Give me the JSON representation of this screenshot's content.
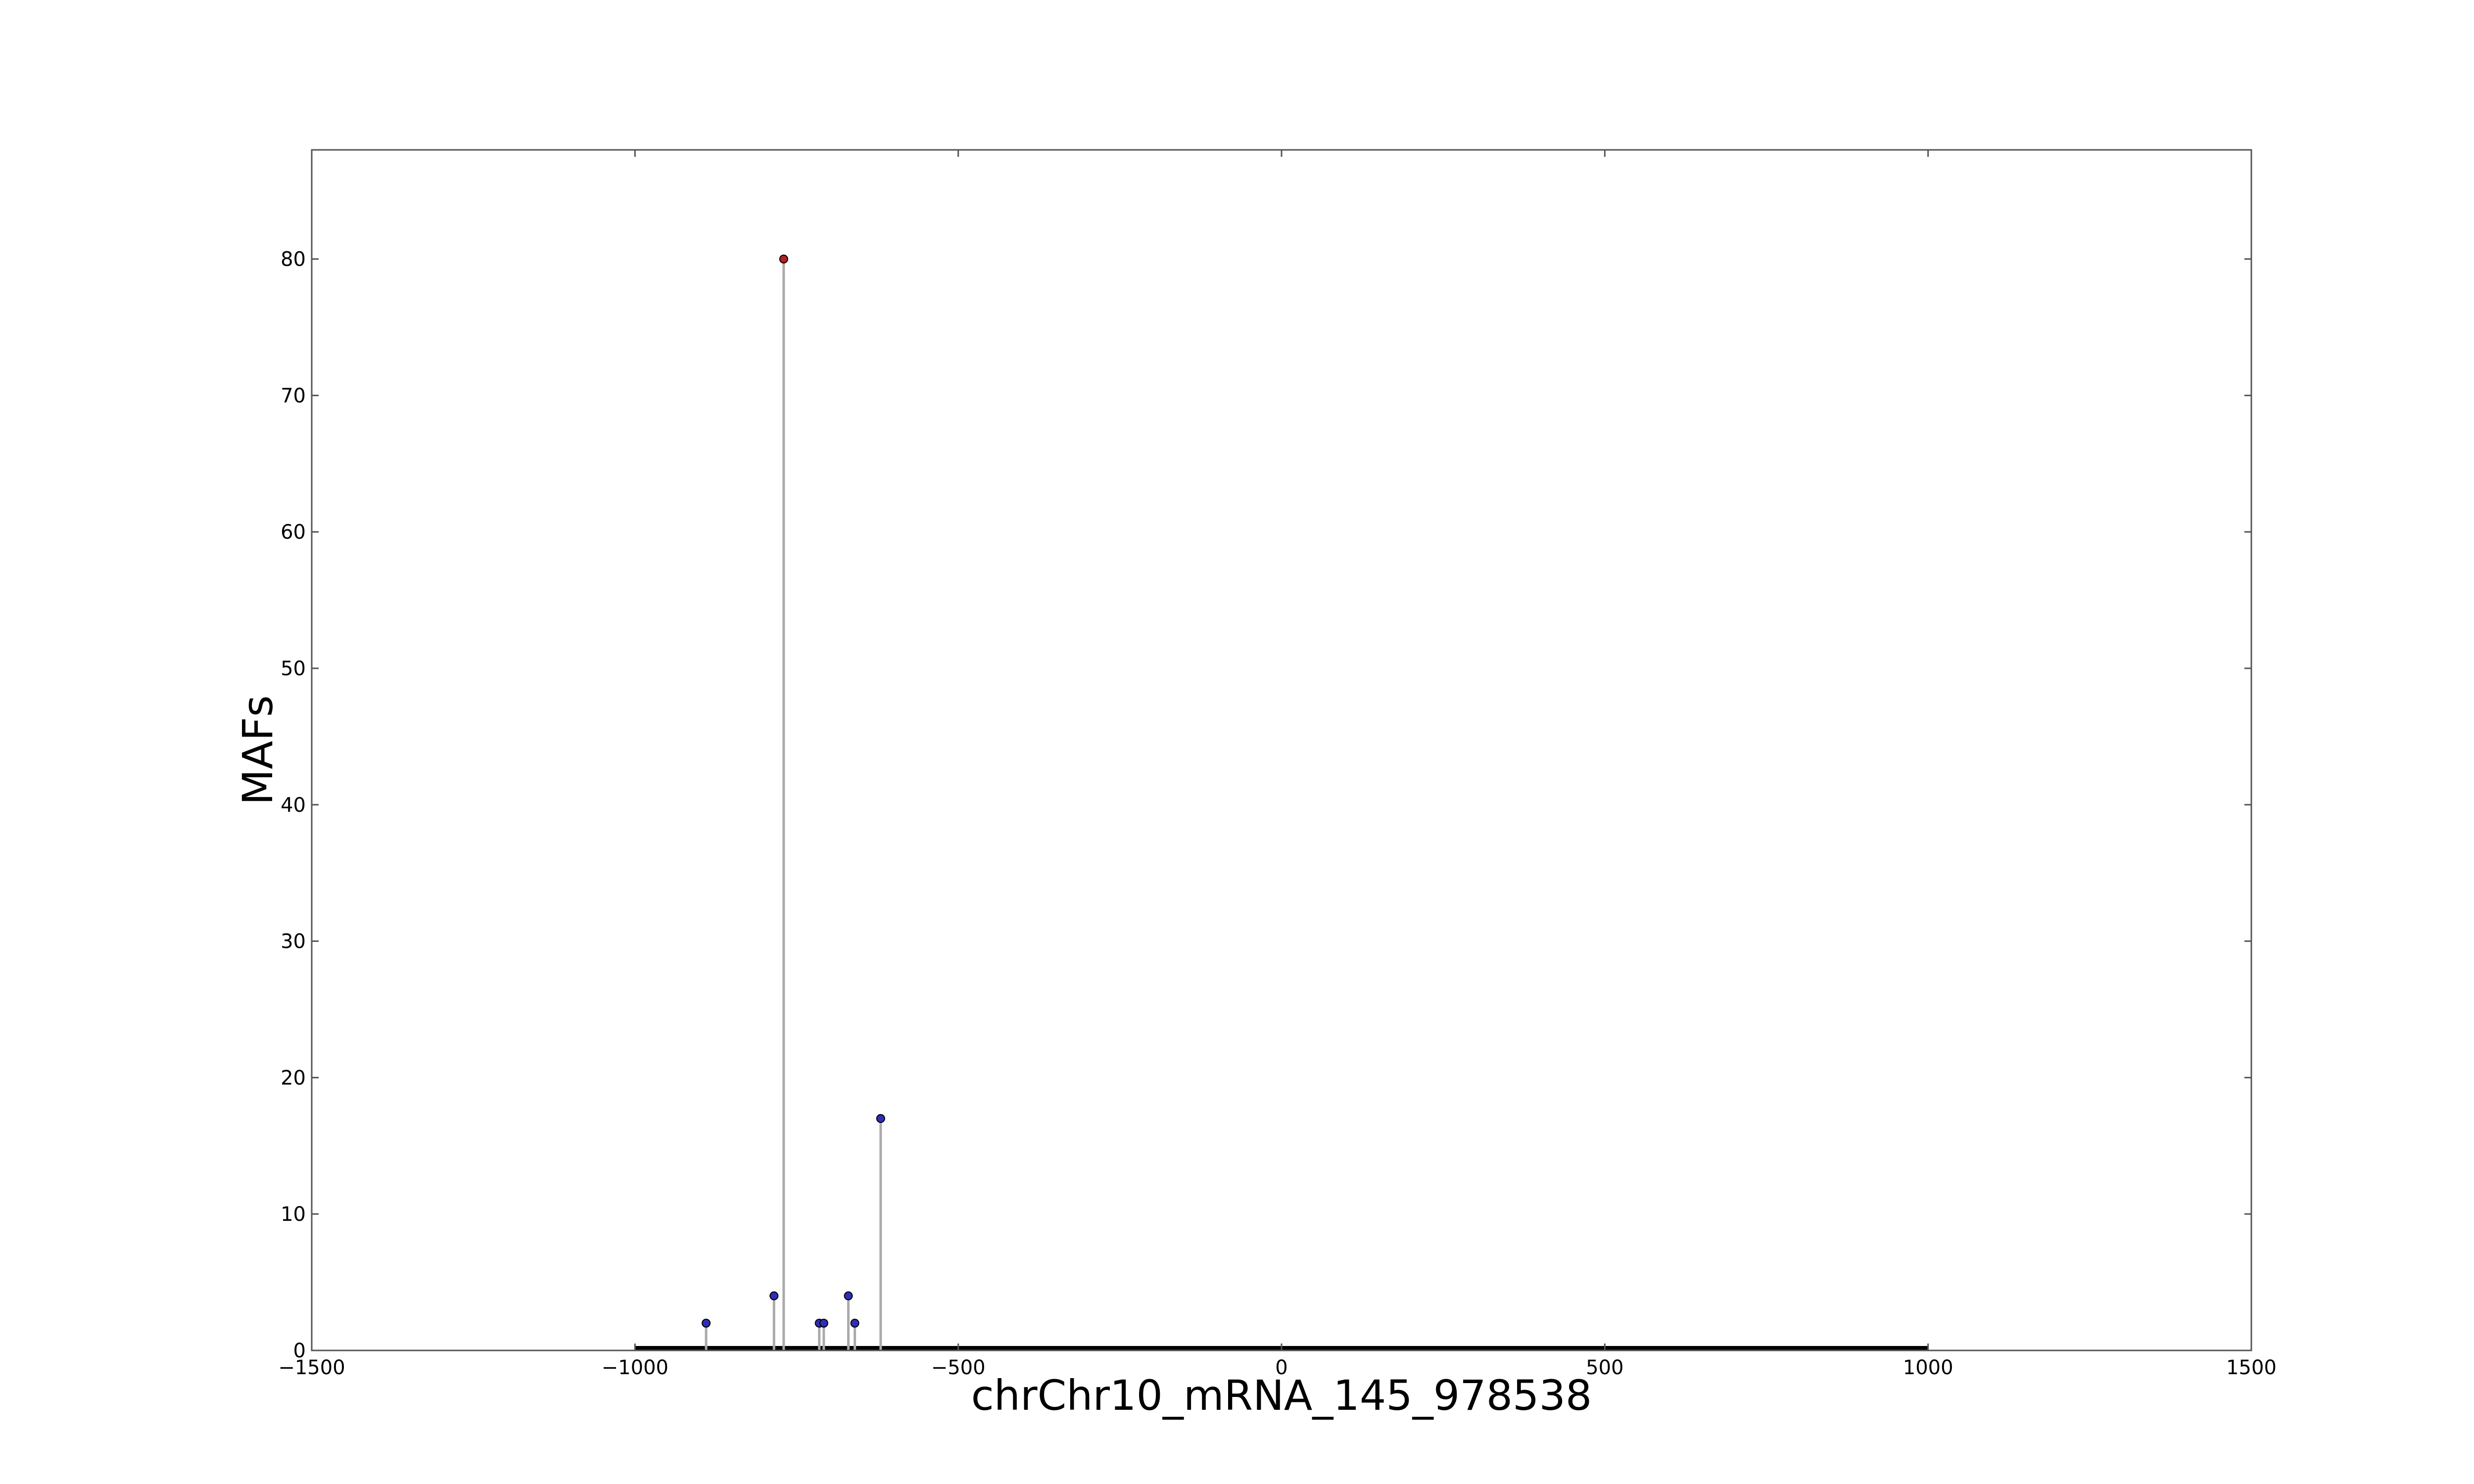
{
  "chart_data": {
    "type": "scatter",
    "style": "stem",
    "xlabel": "chrChr10_mRNA_145_978538",
    "ylabel": "MAFs",
    "xlim": [
      -1500,
      1500
    ],
    "ylim": [
      0,
      88
    ],
    "xticks": [
      -1500,
      -1000,
      -500,
      0,
      500,
      1000,
      1500
    ],
    "xtick_labels": [
      "−1500",
      "−1000",
      "−500",
      "0",
      "500",
      "1000",
      "1500"
    ],
    "yticks": [
      0,
      10,
      20,
      30,
      40,
      50,
      60,
      70,
      80
    ],
    "ytick_labels": [
      "0",
      "10",
      "20",
      "30",
      "40",
      "50",
      "60",
      "70",
      "80"
    ],
    "baseline": {
      "x": [
        -1000,
        1000
      ],
      "y": 0,
      "color": "#000000"
    },
    "stem_color": "#aaaaaa",
    "grid": false,
    "points": [
      {
        "x": -890,
        "y": 2,
        "color": "#2e2eb8"
      },
      {
        "x": -785,
        "y": 4,
        "color": "#2e2eb8"
      },
      {
        "x": -770,
        "y": 80,
        "color": "#b22222"
      },
      {
        "x": -715,
        "y": 2,
        "color": "#2e2eb8"
      },
      {
        "x": -708,
        "y": 2,
        "color": "#2e2eb8"
      },
      {
        "x": -670,
        "y": 4,
        "color": "#2e2eb8"
      },
      {
        "x": -660,
        "y": 2,
        "color": "#2e2eb8"
      },
      {
        "x": -620,
        "y": 17,
        "color": "#2e2eb8"
      }
    ]
  }
}
